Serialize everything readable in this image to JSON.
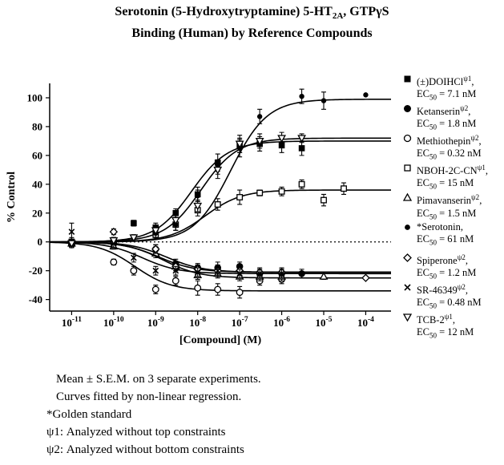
{
  "title": {
    "line1_pre": "Serotonin (5-Hydroxytryptamine) 5-HT",
    "line1_sub": "2A",
    "line1_post": ", GTPγS",
    "line2": "Binding (Human) by Reference Compounds"
  },
  "chart_data": {
    "type": "scatter",
    "xlabel": "[Compound] (M)",
    "ylabel": "% Control",
    "x_scale": "log",
    "xlim": [
      3e-12,
      0.0004
    ],
    "ylim": [
      -48,
      110
    ],
    "x_ticks": [
      {
        "value": 1e-11,
        "base": "10",
        "exp": "-11"
      },
      {
        "value": 1e-10,
        "base": "10",
        "exp": "-10"
      },
      {
        "value": 1e-09,
        "base": "10",
        "exp": "-9"
      },
      {
        "value": 1e-08,
        "base": "10",
        "exp": "-8"
      },
      {
        "value": 1e-07,
        "base": "10",
        "exp": "-7"
      },
      {
        "value": 1e-06,
        "base": "10",
        "exp": "-6"
      },
      {
        "value": 1e-05,
        "base": "10",
        "exp": "-5"
      },
      {
        "value": 0.0001,
        "base": "10",
        "exp": "-4"
      }
    ],
    "y_ticks": [
      -40,
      -20,
      0,
      20,
      40,
      60,
      80,
      100
    ],
    "zero_line": "dotted",
    "series": [
      {
        "name": "(±)DOIHCl",
        "superscript": "ψ1",
        "ec50_label": "= 7.1 nM",
        "marker": "filled-square",
        "curve": {
          "bottom": 0,
          "top": 70,
          "ec50": 7.1e-09
        },
        "points": [
          [
            1e-11,
            0,
            3
          ],
          [
            1e-10,
            1,
            2
          ],
          [
            3e-10,
            13,
            2
          ],
          [
            1e-09,
            10,
            3
          ],
          [
            3e-09,
            20,
            3
          ],
          [
            1e-08,
            33,
            5
          ],
          [
            3e-08,
            55,
            6
          ],
          [
            1e-07,
            67,
            5
          ],
          [
            3e-07,
            68,
            5
          ],
          [
            1e-06,
            67,
            5
          ],
          [
            3e-06,
            65,
            5
          ]
        ]
      },
      {
        "name": "Ketanserin",
        "superscript": "ψ2",
        "ec50_label": "= 1.8 nM",
        "marker": "filled-circle",
        "curve": {
          "bottom": 0,
          "top": -21,
          "ec50": 1.8e-09
        },
        "points": [
          [
            1e-11,
            -1,
            2
          ],
          [
            1e-10,
            -1,
            2
          ],
          [
            1e-09,
            -5,
            3
          ],
          [
            3e-09,
            -15,
            3
          ],
          [
            1e-08,
            -18,
            3
          ],
          [
            3e-08,
            -18,
            4
          ],
          [
            1e-07,
            -17,
            3
          ],
          [
            3e-07,
            -22,
            3
          ],
          [
            1e-06,
            -22,
            3
          ],
          [
            3e-06,
            -22,
            3
          ]
        ]
      },
      {
        "name": "Methiothepin",
        "superscript": "ψ2",
        "ec50_label": "= 0.32 nM",
        "marker": "open-circle",
        "curve": {
          "bottom": 0,
          "top": -34,
          "ec50": 3.2e-10
        },
        "points": [
          [
            1e-11,
            -2,
            2
          ],
          [
            1e-10,
            -14,
            2
          ],
          [
            3e-10,
            -20,
            3
          ],
          [
            1e-09,
            -33,
            3
          ],
          [
            3e-09,
            -27,
            3
          ],
          [
            1e-08,
            -32,
            5
          ],
          [
            3e-08,
            -33,
            4
          ],
          [
            1e-07,
            -35,
            4
          ],
          [
            3e-07,
            -27,
            3
          ],
          [
            1e-06,
            -26,
            3
          ]
        ]
      },
      {
        "name": "NBOH-2C-CN",
        "superscript": "ψ1",
        "ec50_label": "= 15 nM",
        "marker": "open-square",
        "curve": {
          "bottom": 0,
          "top": 36,
          "ec50": 1.5e-08
        },
        "points": [
          [
            1e-11,
            0,
            2
          ],
          [
            1e-10,
            1,
            2
          ],
          [
            1e-09,
            5,
            3
          ],
          [
            3e-09,
            12,
            4
          ],
          [
            1e-08,
            22,
            4
          ],
          [
            3e-08,
            26,
            4
          ],
          [
            1e-07,
            31,
            5
          ],
          [
            3e-07,
            34,
            2
          ],
          [
            1e-06,
            35,
            3
          ],
          [
            3e-06,
            40,
            3
          ],
          [
            1e-05,
            29,
            4
          ],
          [
            3e-05,
            37,
            4
          ]
        ]
      },
      {
        "name": "Pimavanserin",
        "superscript": "ψ2",
        "ec50_label": "= 1.5 nM",
        "marker": "open-triangle",
        "curve": {
          "bottom": 0,
          "top": -25,
          "ec50": 1.5e-09
        },
        "points": [
          [
            1e-11,
            -1,
            2
          ],
          [
            1e-10,
            -3,
            2
          ],
          [
            1e-09,
            -8,
            3
          ],
          [
            3e-09,
            -17,
            3
          ],
          [
            1e-08,
            -23,
            3
          ],
          [
            3e-08,
            -22,
            3
          ],
          [
            1e-07,
            -24,
            3
          ],
          [
            3e-07,
            -24,
            3
          ],
          [
            1e-06,
            -24,
            3
          ],
          [
            1e-05,
            -24,
            2
          ]
        ]
      },
      {
        "name": "*Serotonin",
        "superscript": "",
        "ec50_label": "= 61 nM",
        "marker": "small-dot",
        "curve": {
          "bottom": 0,
          "top": 99,
          "ec50": 6.1e-08
        },
        "points": [
          [
            1e-11,
            -1,
            2
          ],
          [
            1e-10,
            1,
            2
          ],
          [
            1e-09,
            6,
            3
          ],
          [
            3e-09,
            12,
            4
          ],
          [
            1e-08,
            32,
            4
          ],
          [
            3e-08,
            52,
            5
          ],
          [
            1e-07,
            65,
            6
          ],
          [
            3e-07,
            87,
            5
          ],
          [
            3e-06,
            101,
            5
          ],
          [
            1e-05,
            98,
            6
          ],
          [
            0.0001,
            102,
            0
          ]
        ]
      },
      {
        "name": "Spiperone",
        "superscript": "ψ2",
        "ec50_label": "= 1.2 nM",
        "marker": "open-diamond",
        "curve": {
          "bottom": 0,
          "top": -21,
          "ec50": 1.2e-09
        },
        "points": [
          [
            1e-11,
            -1,
            2
          ],
          [
            1e-10,
            7,
            2
          ],
          [
            1e-09,
            -5,
            3
          ],
          [
            3e-09,
            -17,
            3
          ],
          [
            1e-08,
            -19,
            3
          ],
          [
            3e-08,
            -20,
            3
          ],
          [
            1e-07,
            -20,
            3
          ],
          [
            3e-07,
            -21,
            3
          ],
          [
            1e-06,
            -21,
            3
          ],
          [
            0.0001,
            -25,
            0
          ]
        ]
      },
      {
        "name": "SR-46349",
        "superscript": "ψ2",
        "ec50_label": "= 0.48 nM",
        "marker": "x-mark",
        "curve": {
          "bottom": 0,
          "top": -22,
          "ec50": 4.8e-10
        },
        "points": [
          [
            1e-11,
            7,
            6
          ],
          [
            1e-10,
            -1,
            3
          ],
          [
            3e-10,
            -11,
            3
          ],
          [
            1e-09,
            -20,
            3
          ],
          [
            3e-09,
            -20,
            3
          ],
          [
            1e-08,
            -21,
            3
          ],
          [
            3e-08,
            -20,
            4
          ],
          [
            1e-07,
            -22,
            3
          ],
          [
            3e-07,
            -22,
            3
          ],
          [
            1e-06,
            -22,
            3
          ]
        ]
      },
      {
        "name": "TCB-2",
        "superscript": "ψ1",
        "ec50_label": "= 12 nM",
        "marker": "open-down-triangle",
        "curve": {
          "bottom": 0,
          "top": 72,
          "ec50": 1.2e-08
        },
        "points": [
          [
            1e-11,
            -1,
            2
          ],
          [
            1e-10,
            1,
            2
          ],
          [
            3e-10,
            3,
            2
          ],
          [
            1e-09,
            8,
            3
          ],
          [
            3e-09,
            15,
            4
          ],
          [
            1e-08,
            25,
            4
          ],
          [
            3e-08,
            50,
            6
          ],
          [
            1e-07,
            68,
            6
          ],
          [
            3e-07,
            70,
            5
          ],
          [
            1e-06,
            72,
            4
          ],
          [
            3e-06,
            72,
            3
          ]
        ]
      }
    ]
  },
  "legend": {
    "ec_prefix": "EC",
    "ec_sub": "50"
  },
  "notes": {
    "line1": "Mean ± S.E.M. on 3 separate experiments.",
    "line2": "Curves fitted by non-linear regression.",
    "line3": "*Golden standard",
    "line4": "ψ1: Analyzed without top constraints",
    "line5": "ψ2: Analyzed without bottom constraints"
  }
}
